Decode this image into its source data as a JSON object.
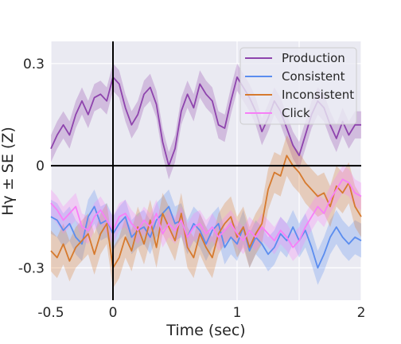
{
  "chart_data": {
    "type": "line",
    "xlabel": "Time (sec)",
    "ylabel": "Hγ ± SE (Z)",
    "xlim": [
      -0.5,
      2.0
    ],
    "ylim": [
      -0.395,
      0.365
    ],
    "xticks": [
      {
        "value": -0.5,
        "label": "-0.5"
      },
      {
        "value": 0,
        "label": "0"
      },
      {
        "value": 1,
        "label": "1"
      },
      {
        "value": 1.5,
        "label": ""
      },
      {
        "value": 2,
        "label": "2"
      }
    ],
    "yticks": [
      {
        "value": 0.3,
        "label": "0.3"
      },
      {
        "value": 0,
        "label": "0"
      },
      {
        "value": -0.3,
        "label": "-0.3"
      }
    ],
    "grid": true,
    "legend": "top-right",
    "reference_lines": {
      "x": 0,
      "y": 0
    },
    "series": [
      {
        "name": "Production",
        "color": "#8e44ad",
        "x": [
          -0.5,
          -0.45,
          -0.4,
          -0.35,
          -0.3,
          -0.25,
          -0.2,
          -0.15,
          -0.1,
          -0.05,
          0,
          0.05,
          0.1,
          0.15,
          0.2,
          0.25,
          0.3,
          0.35,
          0.4,
          0.45,
          0.5,
          0.55,
          0.6,
          0.65,
          0.7,
          0.75,
          0.8,
          0.85,
          0.9,
          0.95,
          1,
          1.05,
          1.1,
          1.15,
          1.2,
          1.25,
          1.3,
          1.35,
          1.4,
          1.45,
          1.5,
          1.55,
          1.6,
          1.65,
          1.7,
          1.75,
          1.8,
          1.85,
          1.9,
          1.95,
          2
        ],
        "y": [
          0.05,
          0.09,
          0.12,
          0.09,
          0.15,
          0.19,
          0.15,
          0.2,
          0.21,
          0.19,
          0.26,
          0.24,
          0.17,
          0.12,
          0.15,
          0.21,
          0.23,
          0.18,
          0.07,
          0.0,
          0.05,
          0.16,
          0.21,
          0.17,
          0.24,
          0.21,
          0.19,
          0.12,
          0.11,
          0.19,
          0.26,
          0.23,
          0.2,
          0.16,
          0.1,
          0.14,
          0.19,
          0.16,
          0.11,
          0.06,
          0.03,
          0.09,
          0.15,
          0.19,
          0.17,
          0.12,
          0.08,
          0.13,
          0.09,
          0.12,
          0.12
        ],
        "se": 0.04
      },
      {
        "name": "Consistent",
        "color": "#5b8def",
        "x": [
          -0.5,
          -0.45,
          -0.4,
          -0.35,
          -0.3,
          -0.25,
          -0.2,
          -0.15,
          -0.1,
          -0.05,
          0,
          0.05,
          0.1,
          0.15,
          0.2,
          0.25,
          0.3,
          0.35,
          0.4,
          0.45,
          0.5,
          0.55,
          0.6,
          0.65,
          0.7,
          0.75,
          0.8,
          0.85,
          0.9,
          0.95,
          1,
          1.05,
          1.1,
          1.15,
          1.2,
          1.25,
          1.3,
          1.35,
          1.4,
          1.45,
          1.5,
          1.55,
          1.6,
          1.65,
          1.7,
          1.75,
          1.8,
          1.85,
          1.9,
          1.95,
          2
        ],
        "y": [
          -0.15,
          -0.16,
          -0.19,
          -0.17,
          -0.21,
          -0.23,
          -0.15,
          -0.12,
          -0.17,
          -0.16,
          -0.2,
          -0.17,
          -0.15,
          -0.21,
          -0.19,
          -0.18,
          -0.21,
          -0.16,
          -0.14,
          -0.12,
          -0.17,
          -0.16,
          -0.21,
          -0.17,
          -0.19,
          -0.23,
          -0.19,
          -0.17,
          -0.24,
          -0.21,
          -0.23,
          -0.18,
          -0.25,
          -0.21,
          -0.23,
          -0.26,
          -0.24,
          -0.2,
          -0.22,
          -0.18,
          -0.22,
          -0.19,
          -0.24,
          -0.3,
          -0.26,
          -0.21,
          -0.18,
          -0.21,
          -0.23,
          -0.21,
          -0.22
        ],
        "se": 0.05
      },
      {
        "name": "Inconsistent",
        "color": "#d67a2e",
        "x": [
          -0.5,
          -0.45,
          -0.4,
          -0.35,
          -0.3,
          -0.25,
          -0.2,
          -0.15,
          -0.1,
          -0.05,
          0,
          0.05,
          0.1,
          0.15,
          0.2,
          0.25,
          0.3,
          0.35,
          0.4,
          0.45,
          0.5,
          0.55,
          0.6,
          0.65,
          0.7,
          0.75,
          0.8,
          0.85,
          0.9,
          0.95,
          1,
          1.05,
          1.1,
          1.15,
          1.2,
          1.25,
          1.3,
          1.35,
          1.4,
          1.45,
          1.5,
          1.55,
          1.6,
          1.65,
          1.7,
          1.75,
          1.8,
          1.85,
          1.9,
          1.95,
          2
        ],
        "y": [
          -0.25,
          -0.27,
          -0.23,
          -0.28,
          -0.24,
          -0.22,
          -0.2,
          -0.26,
          -0.2,
          -0.17,
          -0.3,
          -0.27,
          -0.21,
          -0.25,
          -0.18,
          -0.23,
          -0.16,
          -0.24,
          -0.14,
          -0.18,
          -0.22,
          -0.14,
          -0.24,
          -0.27,
          -0.2,
          -0.24,
          -0.27,
          -0.2,
          -0.17,
          -0.15,
          -0.21,
          -0.18,
          -0.24,
          -0.2,
          -0.17,
          -0.07,
          -0.02,
          -0.03,
          0.03,
          0.0,
          -0.02,
          -0.05,
          -0.07,
          -0.09,
          -0.08,
          -0.12,
          -0.06,
          -0.08,
          -0.05,
          -0.12,
          -0.15
        ],
        "se": 0.06
      },
      {
        "name": "Click",
        "color": "#f77ff7",
        "x": [
          -0.5,
          -0.45,
          -0.4,
          -0.35,
          -0.3,
          -0.25,
          -0.2,
          -0.15,
          -0.1,
          -0.05,
          0,
          0.05,
          0.1,
          0.15,
          0.2,
          0.25,
          0.3,
          0.35,
          0.4,
          0.45,
          0.5,
          0.55,
          0.6,
          0.65,
          0.7,
          0.75,
          0.8,
          0.85,
          0.9,
          0.95,
          1,
          1.05,
          1.1,
          1.15,
          1.2,
          1.25,
          1.3,
          1.35,
          1.4,
          1.45,
          1.5,
          1.55,
          1.6,
          1.65,
          1.7,
          1.75,
          1.8,
          1.85,
          1.9,
          1.95,
          2
        ],
        "y": [
          -0.11,
          -0.13,
          -0.16,
          -0.14,
          -0.12,
          -0.18,
          -0.19,
          -0.15,
          -0.13,
          -0.16,
          -0.19,
          -0.15,
          -0.14,
          -0.17,
          -0.19,
          -0.16,
          -0.18,
          -0.14,
          -0.2,
          -0.17,
          -0.19,
          -0.16,
          -0.21,
          -0.18,
          -0.17,
          -0.2,
          -0.18,
          -0.21,
          -0.19,
          -0.17,
          -0.2,
          -0.22,
          -0.19,
          -0.21,
          -0.18,
          -0.2,
          -0.22,
          -0.19,
          -0.21,
          -0.24,
          -0.22,
          -0.18,
          -0.15,
          -0.12,
          -0.14,
          -0.1,
          -0.07,
          -0.04,
          -0.05,
          -0.08,
          -0.09
        ],
        "se": 0.04
      }
    ]
  }
}
